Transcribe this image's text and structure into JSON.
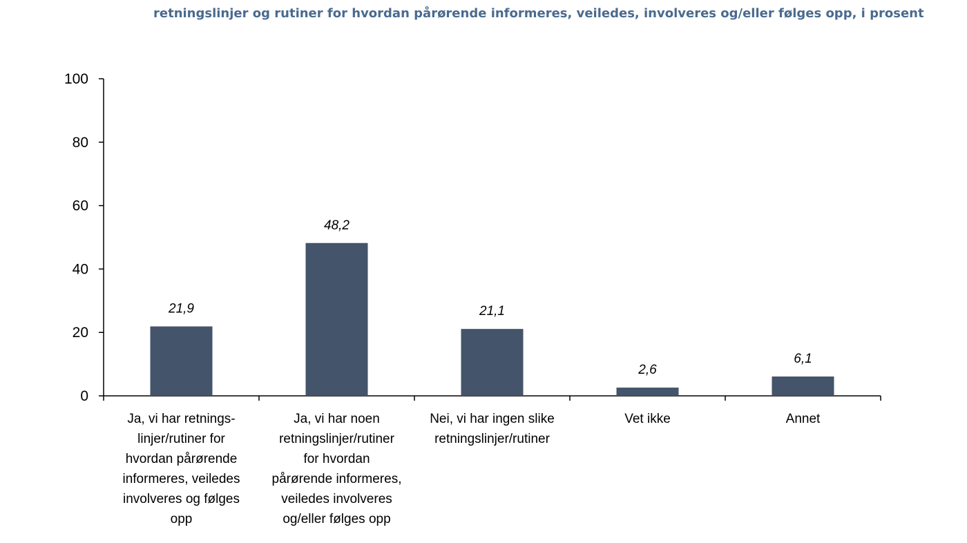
{
  "chart_data": {
    "type": "bar",
    "title": "retningslinjer og rutiner for hvordan pårørende informeres, veiledes, involveres og/eller følges opp, i prosent",
    "categories": [
      "Ja, vi har retnings-linjer/rutiner for hvordan pårørende informeres, veiledes involveres og følges opp",
      "Ja, vi har noen retningslinjer/rutiner for hvordan pårørende informeres, veiledes involveres og/eller følges opp",
      "Nei, vi har ingen slike retningslinjer/rutiner",
      "Vet ikke",
      "Annet"
    ],
    "category_lines": [
      [
        "Ja, vi har retnings-",
        "linjer/rutiner for",
        "hvordan pårørende",
        "informeres, veiledes",
        "involveres og følges",
        "opp"
      ],
      [
        "Ja, vi har noen",
        "retningslinjer/rutiner",
        "for hvordan",
        "pårørende informeres,",
        "veiledes involveres",
        "og/eller følges opp"
      ],
      [
        "Nei, vi har ingen slike",
        "retningslinjer/rutiner"
      ],
      [
        "Vet ikke"
      ],
      [
        "Annet"
      ]
    ],
    "values": [
      21.9,
      48.2,
      21.1,
      2.6,
      6.1
    ],
    "value_labels": [
      "21,9",
      "48,2",
      "21,1",
      "2,6",
      "6,1"
    ],
    "xlabel": "",
    "ylabel": "",
    "ylim": [
      0,
      100
    ],
    "yticks": [
      0,
      20,
      40,
      60,
      80,
      100
    ],
    "grid": false,
    "legend": "none",
    "bar_color": "#44546a",
    "title_color": "#4a6a8f"
  }
}
